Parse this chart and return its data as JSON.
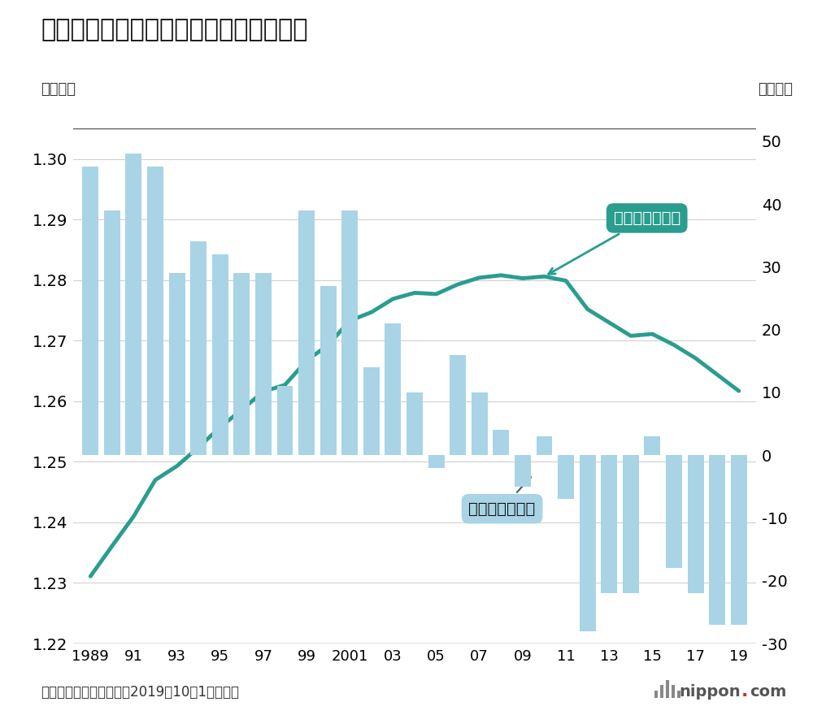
{
  "title": "平成以降の日本の総人口と増減数の推移",
  "ylabel_left": "（億人）",
  "ylabel_right": "（万人）",
  "source": "出所：総務省人口推計（2019年10月1日現在）",
  "years": [
    1989,
    1990,
    1991,
    1992,
    1993,
    1994,
    1995,
    1996,
    1997,
    1998,
    1999,
    2000,
    2001,
    2002,
    2003,
    2004,
    2005,
    2006,
    2007,
    2008,
    2009,
    2010,
    2011,
    2012,
    2013,
    2014,
    2015,
    2016,
    2017,
    2018,
    2019
  ],
  "population": [
    1.2311,
    1.2361,
    1.241,
    1.247,
    1.2493,
    1.2524,
    1.2557,
    1.2586,
    1.2616,
    1.2627,
    1.2667,
    1.2693,
    1.2733,
    1.2747,
    1.2769,
    1.2779,
    1.2777,
    1.2793,
    1.2804,
    1.2808,
    1.2803,
    1.2806,
    1.2799,
    1.2752,
    1.273,
    1.2708,
    1.2711,
    1.2693,
    1.2671,
    1.2644,
    1.2617
  ],
  "change": [
    46,
    39,
    48,
    46,
    29,
    34,
    32,
    29,
    29,
    11,
    39,
    27,
    39,
    14,
    21,
    10,
    -2,
    16,
    10,
    4,
    -5,
    3,
    -7,
    -28,
    -22,
    -22,
    3,
    -18,
    -22,
    -27,
    -27
  ],
  "bar_color": "#a8d4e6",
  "line_color": "#2a9d8f",
  "background_color": "#ffffff",
  "ylim_left": [
    1.22,
    1.305
  ],
  "ylim_right": [
    -30,
    52
  ],
  "annotation_population": "総人口（左軸）",
  "annotation_change": "増減数（右軸）",
  "xtick_labels": [
    "1989",
    "91",
    "93",
    "95",
    "97",
    "99",
    "2001",
    "03",
    "05",
    "07",
    "09",
    "11",
    "13",
    "15",
    "17",
    "19"
  ],
  "xtick_positions": [
    1989,
    1991,
    1993,
    1995,
    1997,
    1999,
    2001,
    2003,
    2005,
    2007,
    2009,
    2011,
    2013,
    2015,
    2017,
    2019
  ]
}
